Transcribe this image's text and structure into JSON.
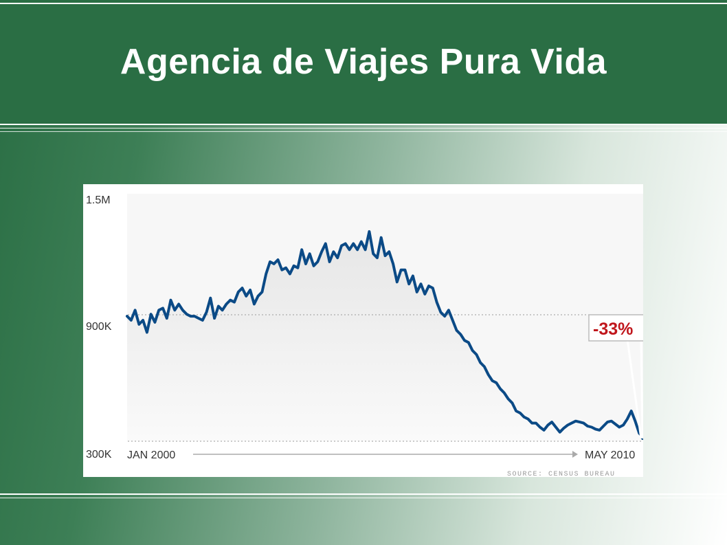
{
  "slide": {
    "title": "Agencia de Viajes Pura Vida"
  },
  "colors": {
    "header_green": "#2a6e44",
    "series_line": "#0b4a86",
    "callout_red": "#c0161c"
  },
  "chart_data": {
    "type": "line",
    "title": "",
    "xlabel": "",
    "ylabel": "",
    "x_start_label": "JAN 2000",
    "x_end_label": "MAY 2010",
    "y_ticks": [
      "300K",
      "900K",
      "1.5M"
    ],
    "y_tick_values": [
      300000,
      900000,
      1500000
    ],
    "ylim": [
      300000,
      1500000
    ],
    "grid": "dotted horizontal at 900K and 300K",
    "annotation": "-33%",
    "source": "SOURCE: CENSUS BUREAU",
    "series": [
      {
        "values": [
          920000,
          900000,
          950000,
          880000,
          900000,
          840000,
          930000,
          890000,
          950000,
          960000,
          910000,
          1000000,
          950000,
          980000,
          950000,
          930000,
          920000,
          920000,
          910000,
          900000,
          940000,
          1010000,
          910000,
          970000,
          950000,
          980000,
          1000000,
          990000,
          1040000,
          1060000,
          1020000,
          1050000,
          980000,
          1020000,
          1040000,
          1130000,
          1190000,
          1180000,
          1200000,
          1150000,
          1160000,
          1130000,
          1170000,
          1160000,
          1250000,
          1180000,
          1230000,
          1170000,
          1190000,
          1240000,
          1280000,
          1190000,
          1240000,
          1210000,
          1270000,
          1280000,
          1250000,
          1280000,
          1250000,
          1290000,
          1250000,
          1340000,
          1230000,
          1210000,
          1310000,
          1220000,
          1240000,
          1180000,
          1090000,
          1150000,
          1150000,
          1080000,
          1120000,
          1040000,
          1080000,
          1030000,
          1070000,
          1060000,
          990000,
          940000,
          920000,
          950000,
          900000,
          850000,
          830000,
          800000,
          790000,
          750000,
          730000,
          690000,
          670000,
          630000,
          600000,
          590000,
          560000,
          540000,
          510000,
          490000,
          450000,
          440000,
          420000,
          410000,
          390000,
          390000,
          370000,
          355000,
          380000,
          395000,
          370000,
          345000,
          365000,
          380000,
          390000,
          400000,
          395000,
          390000,
          375000,
          370000,
          360000,
          355000,
          375000,
          395000,
          400000,
          385000,
          370000,
          380000,
          410000,
          450000,
          400000,
          340000,
          320000
        ]
      }
    ]
  }
}
